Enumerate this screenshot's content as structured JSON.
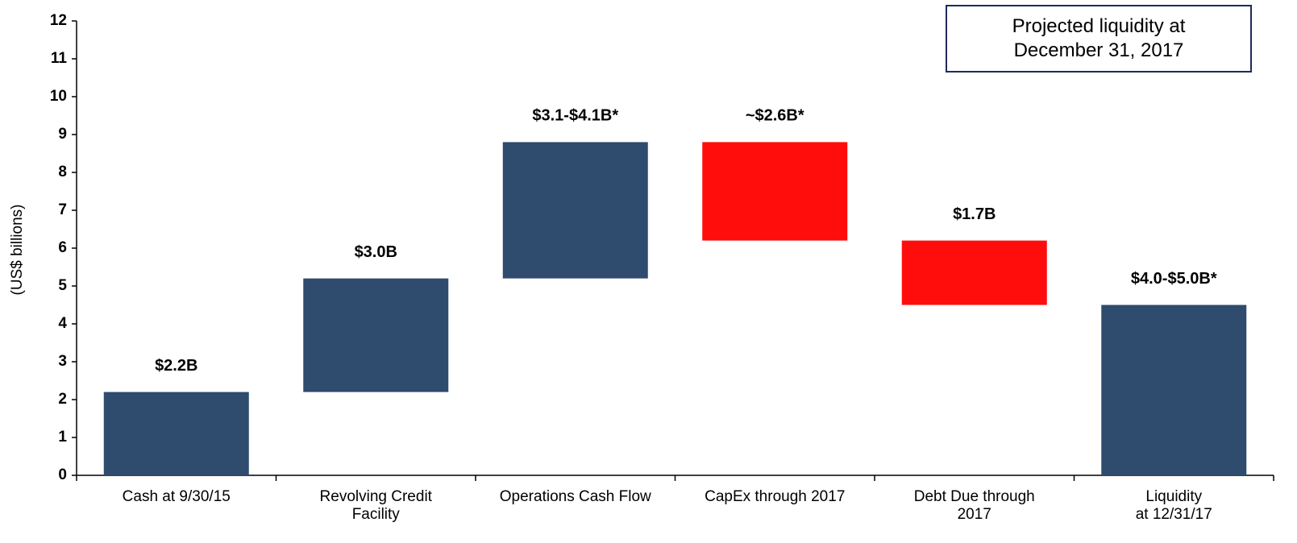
{
  "chart_data": {
    "type": "waterfall",
    "y_label": "(US$ billions)",
    "annotation": [
      "Projected liquidity at",
      "December 31, 2017"
    ],
    "categories": [
      "Cash at 9/30/15",
      "Revolving Credit\nFacility",
      "Operations Cash Flow",
      "CapEx through 2017",
      "Debt Due through\n2017",
      "Liquidity\nat 12/31/17"
    ],
    "values": [
      2.2,
      3.0,
      3.6,
      -2.6,
      -1.7,
      4.5
    ],
    "value_labels": [
      "$2.2B",
      "$3.0B",
      "$3.1-$4.1B*",
      "~$2.6B*",
      "$1.7B",
      "$4.0-$5.0B*"
    ],
    "is_total": [
      false,
      false,
      false,
      false,
      false,
      true
    ],
    "increase_color": "#2f4b6e",
    "decrease_color": "#ff0d0d",
    "total_color": "#2f4b6e",
    "ylim": [
      0,
      12
    ],
    "yticks": [
      0,
      1,
      2,
      3,
      4,
      5,
      6,
      7,
      8,
      9,
      10,
      11,
      12
    ],
    "grid": false
  }
}
